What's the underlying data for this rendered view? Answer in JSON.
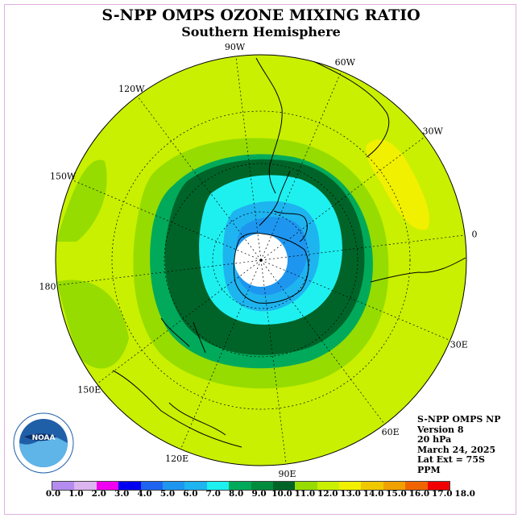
{
  "title": "S-NPP OMPS OZONE MIXING RATIO",
  "subtitle": "Southern Hemisphere",
  "longitude_labels": [
    {
      "text": "90W",
      "lon": -90
    },
    {
      "text": "60W",
      "lon": -60
    },
    {
      "text": "30W",
      "lon": -30
    },
    {
      "text": "0",
      "lon": 0
    },
    {
      "text": "30E",
      "lon": 30
    },
    {
      "text": "60E",
      "lon": 60
    },
    {
      "text": "90E",
      "lon": 90
    },
    {
      "text": "120E",
      "lon": 120
    },
    {
      "text": "150E",
      "lon": 150
    },
    {
      "text": "180",
      "lon": 180
    },
    {
      "text": "150W",
      "lon": -150
    },
    {
      "text": "120W",
      "lon": -120
    }
  ],
  "info": {
    "product": "S-NPP OMPS NP",
    "version": "Version 8",
    "level": "20 hPa",
    "date": "March 24, 2025",
    "lat_ext": "Lat Ext = 75S",
    "units": "PPM"
  },
  "logo": {
    "text": "NOAA"
  },
  "colorbar": {
    "ticks": [
      "0.0",
      "1.0",
      "2.0",
      "3.0",
      "4.0",
      "5.0",
      "6.0",
      "7.0",
      "8.0",
      "9.0",
      "10.0",
      "11.0",
      "12.0",
      "13.0",
      "14.0",
      "15.0",
      "16.0",
      "17.0",
      "18.0"
    ],
    "colors": [
      "#b48cf0",
      "#dcb4f0",
      "#f000f0",
      "#0000f0",
      "#1e64f0",
      "#1e96f0",
      "#1eb4f0",
      "#1ef0f0",
      "#00aa5a",
      "#008c3c",
      "#006428",
      "#96dc00",
      "#c8f000",
      "#f0f000",
      "#f0c800",
      "#f0a000",
      "#f06400",
      "#f00000",
      "#8c5a3c"
    ]
  },
  "map_colors": {
    "background": "#c8f000",
    "ring_11": "#96dc00",
    "ring_10": "#00aa5a",
    "ring_9": "#006428",
    "ring_8": "#1ef0f0",
    "ring_7": "#1eb4f0",
    "ring_6": "#1e96f0",
    "pole_fill": "#ffffff",
    "yellow_patch": "#f0f000"
  }
}
